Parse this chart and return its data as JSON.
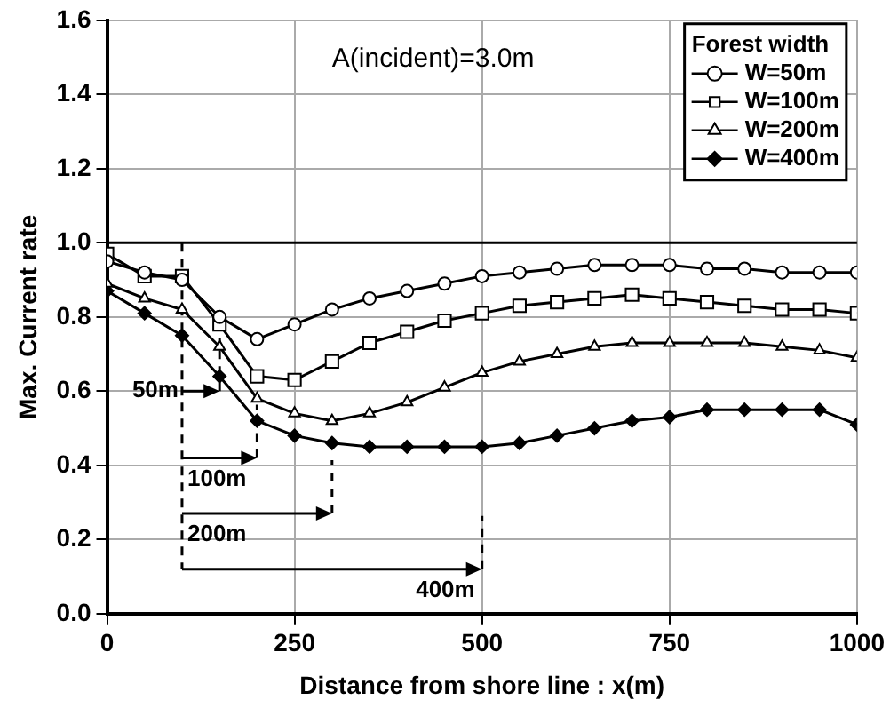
{
  "chart_data": {
    "type": "line",
    "xlabel": "Distance from shore line : x(m)",
    "ylabel": "Max. Current rate",
    "legend_title": "Forest width",
    "legend": "top right",
    "grid": true,
    "x": [
      0,
      50,
      100,
      150,
      200,
      250,
      300,
      350,
      400,
      450,
      500,
      550,
      600,
      650,
      700,
      750,
      800,
      850,
      900,
      950,
      1000
    ],
    "series": [
      {
        "name": "W=50m",
        "color": "#000000",
        "marker": "circle",
        "values": [
          0.95,
          0.92,
          0.9,
          0.8,
          0.74,
          0.78,
          0.82,
          0.85,
          0.87,
          0.89,
          0.91,
          0.92,
          0.93,
          0.94,
          0.94,
          0.94,
          0.93,
          0.93,
          0.92,
          0.92,
          0.92
        ]
      },
      {
        "name": "W=100m",
        "color": "#000000",
        "marker": "square",
        "values": [
          0.97,
          0.91,
          0.91,
          0.78,
          0.64,
          0.63,
          0.68,
          0.73,
          0.76,
          0.79,
          0.81,
          0.83,
          0.84,
          0.85,
          0.86,
          0.85,
          0.84,
          0.83,
          0.82,
          0.82,
          0.81
        ]
      },
      {
        "name": "W=200m",
        "color": "#000000",
        "marker": "triangle",
        "values": [
          0.89,
          0.85,
          0.82,
          0.72,
          0.58,
          0.54,
          0.52,
          0.54,
          0.57,
          0.61,
          0.65,
          0.68,
          0.7,
          0.72,
          0.73,
          0.73,
          0.73,
          0.73,
          0.72,
          0.71,
          0.69
        ]
      },
      {
        "name": "W=400m",
        "color": "#000000",
        "marker": "diamond",
        "values": [
          0.87,
          0.81,
          0.75,
          0.64,
          0.52,
          0.48,
          0.46,
          0.45,
          0.45,
          0.45,
          0.45,
          0.46,
          0.48,
          0.5,
          0.52,
          0.53,
          0.55,
          0.55,
          0.55,
          0.55,
          0.51
        ]
      }
    ],
    "xlim": [
      0,
      1000
    ],
    "xticks": [
      0,
      250,
      500,
      750,
      1000
    ],
    "ylim": [
      0,
      1.6
    ],
    "yticks": [
      {
        "value": 0,
        "label": "0.0"
      },
      {
        "value": 0.2,
        "label": "0.2"
      },
      {
        "value": 0.4,
        "label": "0.4"
      },
      {
        "value": 0.6,
        "label": "0.6"
      },
      {
        "value": 0.8,
        "label": "0.8"
      },
      {
        "value": 1,
        "label": "1.0"
      },
      {
        "value": 1.2,
        "label": "1.2"
      },
      {
        "value": 1.4,
        "label": "1.4"
      },
      {
        "value": 1.6,
        "label": "1.6"
      }
    ],
    "ref_lines": [
      {
        "axis": "y",
        "value": 1,
        "line_style": "solid"
      },
      {
        "axis": "x",
        "value": 100,
        "line_style": "dashed"
      },
      {
        "axis": "x",
        "value": 150,
        "label": "50m",
        "line_style": "dashed"
      },
      {
        "axis": "x",
        "value": 200,
        "label": "100m",
        "line_style": "dashed"
      },
      {
        "axis": "x",
        "value": 300,
        "label": "200m",
        "line_style": "dashed"
      },
      {
        "axis": "x",
        "value": 500,
        "label": "400m",
        "line_style": "dashed"
      }
    ],
    "annotations": [
      "A(incident)=3.0m"
    ]
  }
}
